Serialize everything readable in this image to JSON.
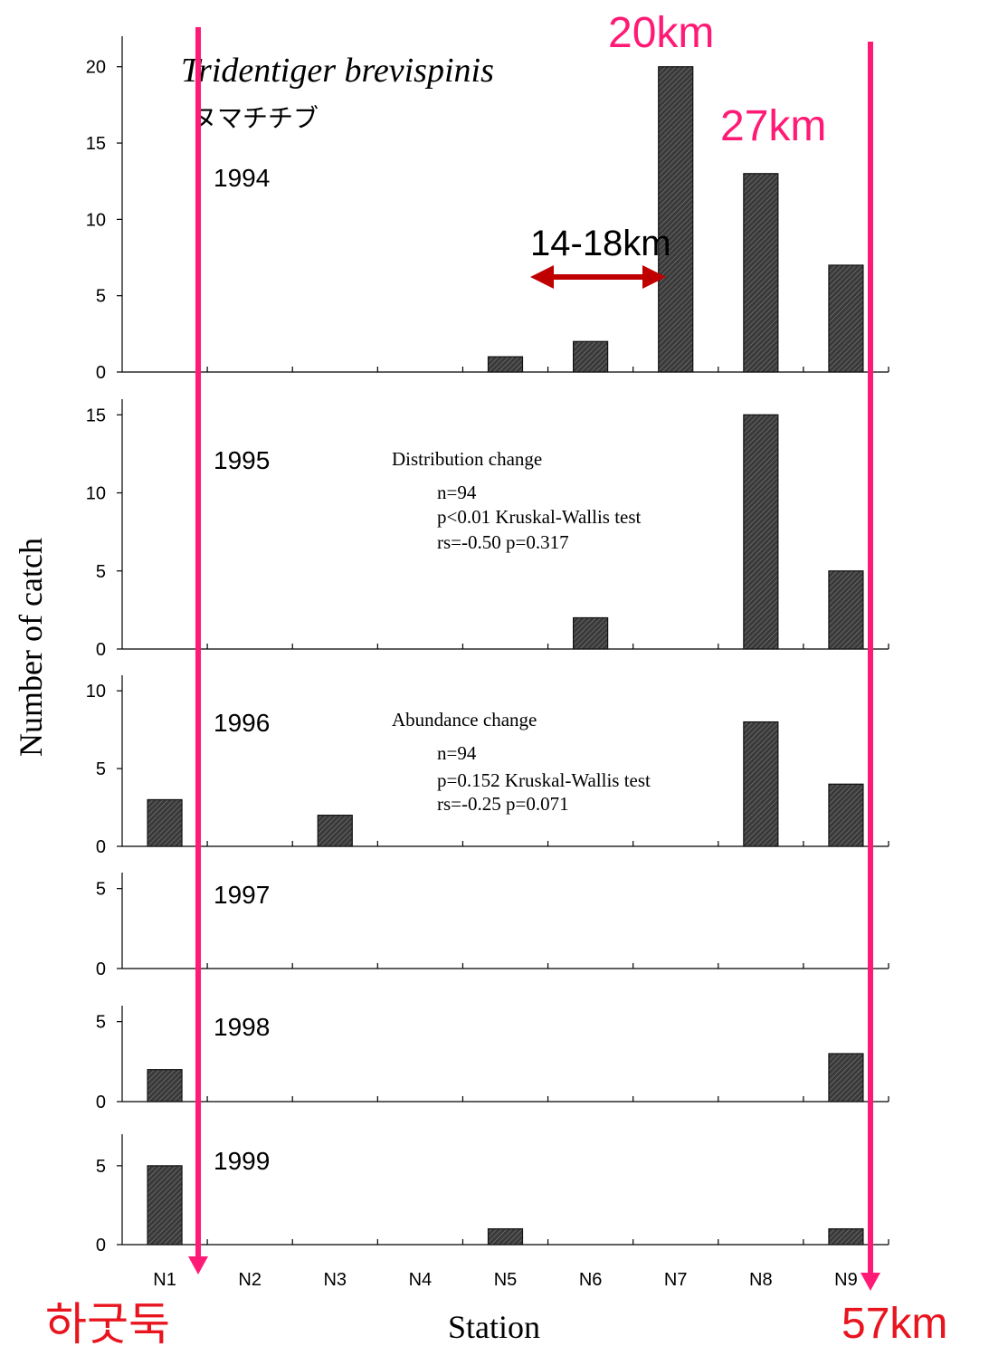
{
  "colors": {
    "bar_fill": "#3a3a3a",
    "bar_stroke": "#111111",
    "overlay_magenta": "#ff1a75",
    "arrow_red": "#c00000",
    "label_red": "#e8141e"
  },
  "annotations": {
    "species": "Tridentiger brevispinis",
    "japanese_name": "ヌマチチブ",
    "km_20": "20km",
    "km_27": "27km",
    "km_range": "14-18km",
    "km_57": "57km",
    "korean_label": "하굿둑",
    "distribution": {
      "title": "Distribution change",
      "n": "n=94",
      "test": "p<0.01 Kruskal-Wallis test",
      "rs": "rs=-0.50  p=0.317"
    },
    "abundance": {
      "title": "Abundance change",
      "n": "n=94",
      "test": "p=0.152  Kruskal-Wallis test",
      "rs": "rs=-0.25  p=0.071"
    }
  },
  "chart_data": {
    "type": "bar",
    "title": "",
    "xlabel": "Station",
    "ylabel": "Number of catch",
    "categories": [
      "N1",
      "N2",
      "N3",
      "N4",
      "N5",
      "N6",
      "N7",
      "N8",
      "N9"
    ],
    "grid": false,
    "panels": [
      {
        "year": "1994",
        "ylim": [
          0,
          22
        ],
        "yticks": [
          0,
          5,
          10,
          15,
          20
        ],
        "values": [
          0,
          0,
          0,
          0,
          1,
          2,
          20,
          13,
          7
        ]
      },
      {
        "year": "1995",
        "ylim": [
          0,
          16
        ],
        "yticks": [
          0,
          5,
          10,
          15
        ],
        "values": [
          0,
          0,
          0,
          0,
          0,
          2,
          0,
          15,
          5
        ]
      },
      {
        "year": "1996",
        "ylim": [
          0,
          11
        ],
        "yticks": [
          0,
          5,
          10
        ],
        "values": [
          3,
          0,
          2,
          0,
          0,
          0,
          0,
          8,
          4
        ]
      },
      {
        "year": "1997",
        "ylim": [
          0,
          6
        ],
        "yticks": [
          0,
          5
        ],
        "values": [
          0,
          0,
          0,
          0,
          0,
          0,
          0,
          0,
          0
        ]
      },
      {
        "year": "1998",
        "ylim": [
          0,
          6
        ],
        "yticks": [
          0,
          5
        ],
        "values": [
          2,
          0,
          0,
          0,
          0,
          0,
          0,
          0,
          3
        ]
      },
      {
        "year": "1999",
        "ylim": [
          0,
          7
        ],
        "yticks": [
          0,
          5
        ],
        "values": [
          5,
          0,
          0,
          0,
          1,
          0,
          0,
          0,
          1
        ]
      }
    ]
  }
}
